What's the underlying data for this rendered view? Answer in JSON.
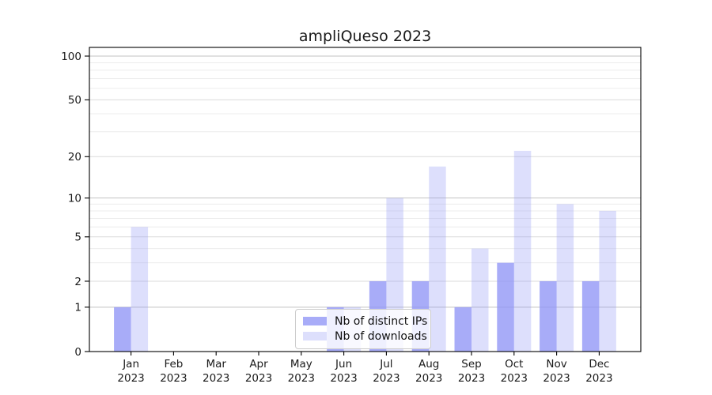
{
  "title": "ampliQueso 2023",
  "chart_data": {
    "type": "bar",
    "title": "ampliQueso 2023",
    "categories": [
      "Jan",
      "Feb",
      "Mar",
      "Apr",
      "May",
      "Jun",
      "Jul",
      "Aug",
      "Sep",
      "Oct",
      "Nov",
      "Dec"
    ],
    "xtick_year": "2023",
    "series": [
      {
        "name": "Nb of distinct IPs",
        "color": "#8f95f6",
        "opacity": 0.78,
        "values": [
          1,
          0,
          0,
          0,
          0,
          1,
          2,
          2,
          1,
          3,
          2,
          2
        ]
      },
      {
        "name": "Nb of downloads",
        "color": "#8f95f6",
        "opacity": 0.3,
        "values": [
          6,
          0,
          0,
          0,
          0,
          1,
          10,
          17,
          4,
          22,
          9,
          8
        ]
      }
    ],
    "yscale": "log1p",
    "ylim": [
      0,
      115
    ],
    "ytick_values": [
      0,
      1,
      2,
      5,
      10,
      20,
      50,
      100
    ],
    "ytick_labels": [
      "0",
      "1",
      "2",
      "5",
      "10",
      "20",
      "50",
      "100"
    ],
    "minor_gridline_values": [
      3,
      4,
      6,
      7,
      8,
      9,
      30,
      40,
      60,
      70,
      80,
      90
    ],
    "grid": true,
    "legend_position": "lower center (inside plot)",
    "colors": {
      "axis": "#000000",
      "tick_label": "#1a1a1a",
      "grid_decade": "#c2c2c2",
      "grid_major": "#dbdbdb",
      "grid_minor": "#ececec",
      "background": "#ffffff"
    }
  }
}
